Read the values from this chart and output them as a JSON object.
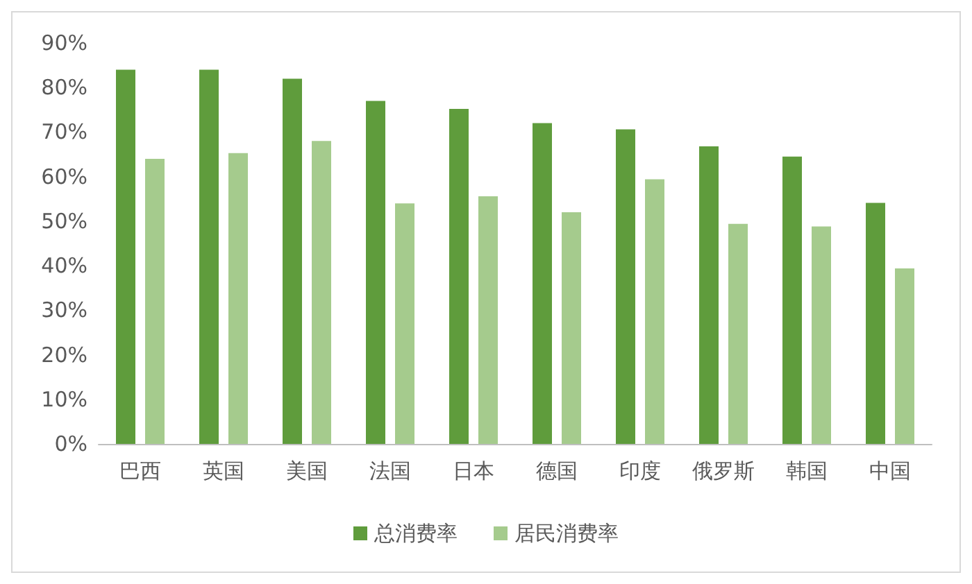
{
  "chart_data": {
    "type": "bar",
    "categories": [
      "巴西",
      "英国",
      "美国",
      "法国",
      "日本",
      "德国",
      "印度",
      "俄罗斯",
      "韩国",
      "中国"
    ],
    "series": [
      {
        "name": "总消费率",
        "color": "#5f9c3c",
        "values": [
          84,
          84,
          82,
          77,
          75.2,
          72,
          70.6,
          66.8,
          64.5,
          54.1
        ]
      },
      {
        "name": "居民消费率",
        "color": "#a5cb8d",
        "values": [
          64,
          65.3,
          68,
          54,
          55.6,
          52,
          59.4,
          49.4,
          48.8,
          39.4
        ]
      }
    ],
    "ylim": [
      0,
      90
    ],
    "yticks": [
      {
        "value": 0,
        "label": "0%"
      },
      {
        "value": 10,
        "label": "10%"
      },
      {
        "value": 20,
        "label": "20%"
      },
      {
        "value": 30,
        "label": "30%"
      },
      {
        "value": 40,
        "label": "40%"
      },
      {
        "value": 50,
        "label": "50%"
      },
      {
        "value": 60,
        "label": "60%"
      },
      {
        "value": 70,
        "label": "70%"
      },
      {
        "value": 80,
        "label": "80%"
      },
      {
        "value": 90,
        "label": "90%"
      }
    ],
    "grid": false,
    "legend": "bottom"
  }
}
